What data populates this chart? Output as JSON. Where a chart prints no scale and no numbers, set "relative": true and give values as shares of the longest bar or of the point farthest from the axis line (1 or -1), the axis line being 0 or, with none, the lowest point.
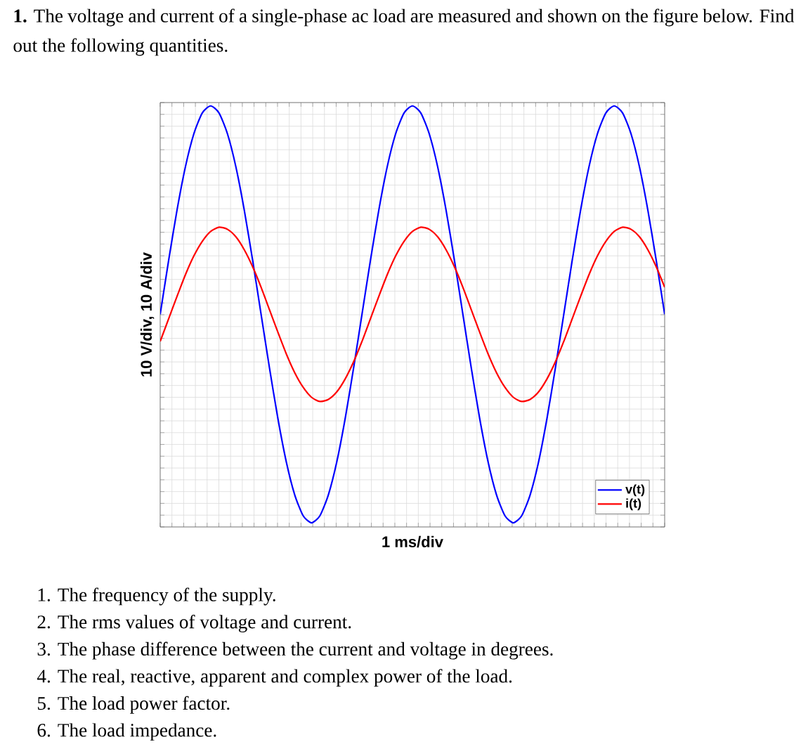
{
  "chart_data": {
    "type": "line",
    "title": "**1.** The voltage and current of a single-phase ac load are measured and shown on the figure below. Find out the following quantities.",
    "xlabel": "1 ms/div",
    "ylabel": "10 V/div,   10 A/div",
    "relative": true,
    "grid": true,
    "legend": "bottom right",
    "categories": [
      null,
      null,
      null,
      null,
      null,
      null,
      null,
      null,
      null,
      null,
      null,
      null,
      null,
      null,
      null,
      null,
      null,
      null,
      null,
      null,
      null,
      null,
      null,
      null,
      null,
      null,
      null,
      null,
      null,
      null,
      null,
      null,
      null,
      null,
      null,
      null,
      null,
      null,
      null,
      null,
      null,
      null,
      null,
      null,
      null,
      null,
      null,
      null,
      null,
      null,
      null,
      null,
      null,
      null,
      null,
      null,
      null,
      null,
      null,
      null,
      null
    ],
    "series": [
      {
        "name": "v(t)",
        "color": "#0000ff",
        "values": [
          0.5,
          0.629,
          0.75,
          0.854,
          0.933,
          0.983,
          1,
          0.983,
          0.933,
          0.854,
          0.75,
          0.629,
          0.5,
          0.371,
          0.25,
          0.146,
          0.067,
          0.017,
          0,
          0.017,
          0.067,
          0.146,
          0.25,
          0.371,
          0.5,
          0.629,
          0.75,
          0.854,
          0.933,
          0.983,
          1,
          0.983,
          0.933,
          0.854,
          0.75,
          0.629,
          0.5,
          0.371,
          0.25,
          0.146,
          0.067,
          0.017,
          0,
          0.017,
          0.067,
          0.146,
          0.25,
          0.371,
          0.5,
          0.629,
          0.75,
          0.854,
          0.933,
          0.983,
          1,
          0.983,
          0.933,
          0.854,
          0.75,
          0.629,
          0.5
        ]
      },
      {
        "name": "i(t)",
        "color": "#ff0000",
        "values": [
          0.435,
          0.489,
          0.543,
          0.595,
          0.64,
          0.675,
          0.699,
          0.709,
          0.704,
          0.686,
          0.655,
          0.614,
          0.565,
          0.511,
          0.457,
          0.405,
          0.36,
          0.325,
          0.301,
          0.291,
          0.296,
          0.314,
          0.345,
          0.386,
          0.435,
          0.489,
          0.543,
          0.595,
          0.64,
          0.675,
          0.699,
          0.709,
          0.704,
          0.686,
          0.655,
          0.614,
          0.565,
          0.511,
          0.457,
          0.405,
          0.36,
          0.325,
          0.301,
          0.291,
          0.296,
          0.314,
          0.345,
          0.386,
          0.435,
          0.489,
          0.543,
          0.595,
          0.64,
          0.675,
          0.699,
          0.709,
          0.704,
          0.686,
          0.655,
          0.614,
          0.565
        ]
      }
    ],
    "annotations": [
      "1. The frequency of the supply.",
      "2. The rms values of voltage and current.",
      "3. The phase difference between the current and voltage in degrees.",
      "4. The real, reactive, apparent and complex power of the load.",
      "5. The load power factor.",
      "6. The load impedance."
    ]
  }
}
